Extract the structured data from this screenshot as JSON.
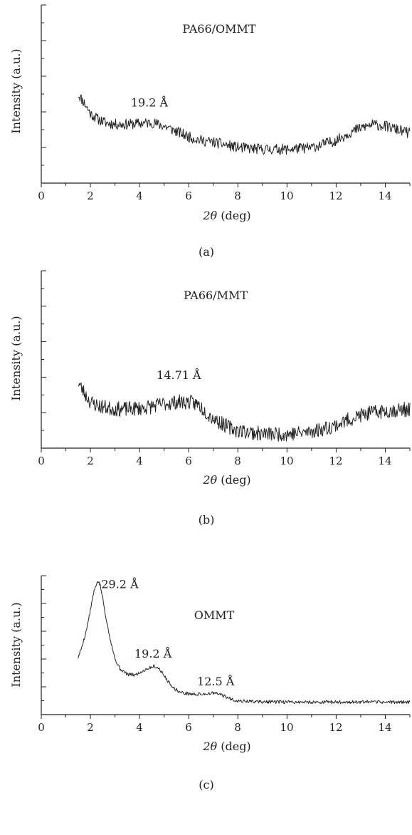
{
  "chart_data": [
    {
      "type": "line",
      "panel_label": "(a)",
      "title": "PA66/OMMT",
      "xlabel_symbol": "2θ",
      "xlabel_unit": "(deg)",
      "ylabel": "Intensity (a.u.)",
      "xlim": [
        0,
        15
      ],
      "ylim": [
        0,
        10
      ],
      "xticks": [
        "0",
        "2",
        "4",
        "6",
        "8",
        "10",
        "12",
        "14"
      ],
      "y_tick_labels": false,
      "grid": false,
      "annotations": [
        {
          "text": "19.2 Å",
          "x": 4.4,
          "y": 4.3
        }
      ],
      "noise": 0.3,
      "seed": 11,
      "series": [
        {
          "x": [
            1.5,
            1.8,
            2.0,
            2.3,
            2.6,
            3.0,
            3.5,
            4.0,
            4.5,
            5.0,
            5.5,
            6.0,
            6.5,
            7.0,
            8.0,
            9.0,
            10.0,
            10.5,
            11.0,
            11.5,
            12.0,
            12.5,
            13.0,
            13.5,
            14.0,
            14.5,
            15.0
          ],
          "y": [
            5.0,
            4.4,
            3.9,
            3.6,
            3.4,
            3.3,
            3.3,
            3.35,
            3.4,
            3.2,
            2.9,
            2.6,
            2.4,
            2.3,
            2.0,
            1.9,
            1.9,
            1.95,
            2.0,
            2.2,
            2.4,
            2.8,
            3.1,
            3.3,
            3.2,
            3.0,
            2.8
          ]
        }
      ]
    },
    {
      "type": "line",
      "panel_label": "(b)",
      "title": "PA66/MMT",
      "xlabel_symbol": "2θ",
      "xlabel_unit": "(deg)",
      "ylabel": "Intensity (a.u.)",
      "xlim": [
        0,
        15
      ],
      "ylim": [
        0,
        10
      ],
      "xticks": [
        "0",
        "2",
        "4",
        "6",
        "8",
        "10",
        "12",
        "14"
      ],
      "y_tick_labels": false,
      "grid": false,
      "annotations": [
        {
          "text": "14.71 Å",
          "x": 5.6,
          "y": 3.9
        }
      ],
      "noise": 0.42,
      "seed": 23,
      "series": [
        {
          "x": [
            1.5,
            1.8,
            2.0,
            2.3,
            2.6,
            3.0,
            3.5,
            4.0,
            4.5,
            5.0,
            5.5,
            6.0,
            6.4,
            6.8,
            7.2,
            7.6,
            8.0,
            9.0,
            10.0,
            10.5,
            11.0,
            11.5,
            12.0,
            12.5,
            13.0,
            13.5,
            14.0,
            14.5,
            15.0
          ],
          "y": [
            3.7,
            3.0,
            2.6,
            2.4,
            2.3,
            2.2,
            2.2,
            2.25,
            2.35,
            2.5,
            2.6,
            2.6,
            2.45,
            1.9,
            1.5,
            1.2,
            1.0,
            0.8,
            0.8,
            0.85,
            0.95,
            1.1,
            1.3,
            1.6,
            1.85,
            2.0,
            2.1,
            2.15,
            2.2
          ]
        }
      ]
    },
    {
      "type": "line",
      "panel_label": "(c)",
      "title": "OMMT",
      "xlabel_symbol": "2θ",
      "xlabel_unit": "(deg)",
      "ylabel": "Intensity (a.u.)",
      "xlim": [
        0,
        15
      ],
      "ylim": [
        0,
        10
      ],
      "xticks": [
        "0",
        "2",
        "4",
        "6",
        "8",
        "10",
        "12",
        "14"
      ],
      "y_tick_labels": false,
      "grid": false,
      "annotations": [
        {
          "text": "29.2 Å",
          "x": 3.2,
          "y": 9.1
        },
        {
          "text": "19.2 Å",
          "x": 4.55,
          "y": 4.1
        },
        {
          "text": "12.5 Å",
          "x": 7.1,
          "y": 2.1
        }
      ],
      "noise": 0.12,
      "seed": 5,
      "series": [
        {
          "x": [
            1.5,
            1.6,
            1.8,
            2.0,
            2.1,
            2.2,
            2.3,
            2.4,
            2.5,
            2.6,
            2.8,
            3.0,
            3.2,
            3.5,
            3.8,
            4.0,
            4.3,
            4.6,
            4.8,
            5.0,
            5.2,
            5.4,
            5.6,
            5.8,
            6.0,
            6.3,
            6.6,
            7.0,
            7.3,
            7.6,
            8.0,
            9.0,
            10.0,
            11.0,
            12.0,
            13.0,
            14.0,
            15.0
          ],
          "y": [
            4.1,
            4.6,
            5.8,
            7.5,
            8.5,
            9.2,
            9.6,
            9.3,
            8.4,
            7.3,
            5.5,
            4.0,
            3.3,
            2.9,
            2.85,
            3.0,
            3.3,
            3.5,
            3.3,
            2.8,
            2.3,
            1.9,
            1.65,
            1.55,
            1.5,
            1.45,
            1.48,
            1.55,
            1.45,
            1.2,
            0.98,
            0.92,
            0.9,
            0.9,
            0.9,
            0.9,
            0.9,
            0.9
          ]
        }
      ]
    }
  ]
}
